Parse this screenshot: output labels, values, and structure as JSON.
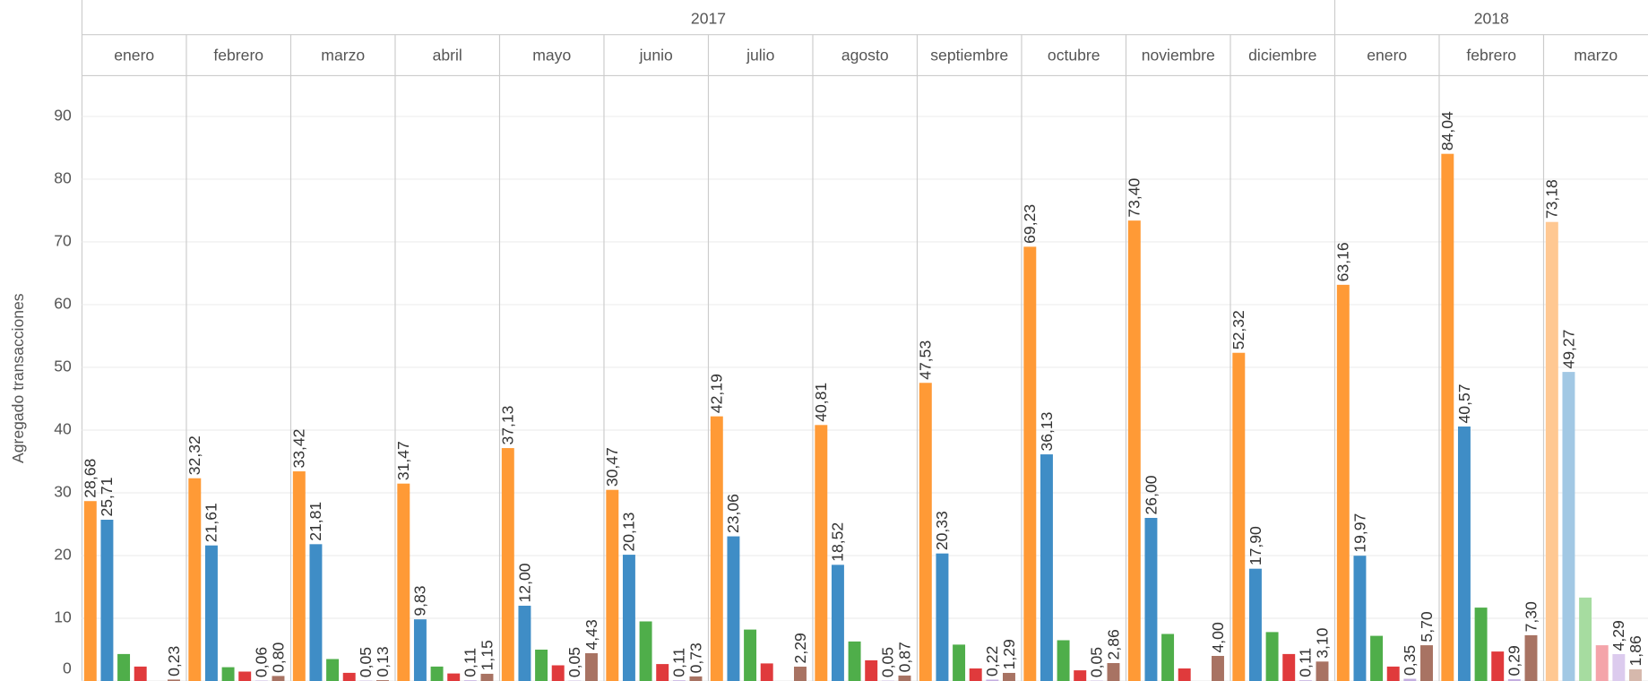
{
  "chart_data": {
    "type": "bar",
    "y_label": "Agregado transacciones",
    "groups": [
      {
        "name": "2017",
        "categories": [
          "enero",
          "febrero",
          "marzo",
          "abril",
          "mayo",
          "junio",
          "julio",
          "agosto",
          "septiembre",
          "octubre",
          "noviembre",
          "diciembre"
        ]
      },
      {
        "name": "2018",
        "categories": [
          "enero",
          "febrero",
          "marzo"
        ]
      }
    ],
    "ylim": [
      0,
      96.5
    ],
    "yticks": [
      0,
      10,
      20,
      30,
      40,
      50,
      60,
      70,
      80,
      90
    ],
    "grid": true,
    "series": [
      {
        "colors": [
          "#ff9a36",
          "#ff9a36",
          "#ff9a36",
          "#ff9a36",
          "#ff9a36",
          "#ff9a36",
          "#ff9a36",
          "#ff9a36",
          "#ff9a36",
          "#ff9a36",
          "#ff9a36",
          "#ff9a36",
          "#ff9a36",
          "#ff9a36",
          "#ffc892"
        ],
        "values": [
          28.68,
          32.32,
          33.42,
          31.47,
          37.13,
          30.47,
          42.19,
          40.81,
          47.53,
          69.23,
          73.4,
          52.32,
          63.16,
          84.04,
          73.18
        ],
        "value_labels": [
          "28,68",
          "32,32",
          "33,42",
          "31,47",
          "37,13",
          "30,47",
          "42,19",
          "40,81",
          "47,53",
          "69,23",
          "73,40",
          "52,32",
          "63,16",
          "84,04",
          "73,18"
        ]
      },
      {
        "colors": [
          "#3f8dc6",
          "#3f8dc6",
          "#3f8dc6",
          "#3f8dc6",
          "#3f8dc6",
          "#3f8dc6",
          "#3f8dc6",
          "#3f8dc6",
          "#3f8dc6",
          "#3f8dc6",
          "#3f8dc6",
          "#3f8dc6",
          "#3f8dc6",
          "#3f8dc6",
          "#a2c8e4"
        ],
        "values": [
          25.71,
          21.61,
          21.81,
          9.83,
          12.0,
          20.13,
          23.06,
          18.52,
          20.33,
          36.13,
          26.0,
          17.9,
          19.97,
          40.57,
          49.27
        ],
        "value_labels": [
          "25,71",
          "21,61",
          "21,81",
          "9,83",
          "12,00",
          "20,13",
          "23,06",
          "18,52",
          "20,33",
          "36,13",
          "26,00",
          "17,90",
          "19,97",
          "40,57",
          "49,27"
        ]
      },
      {
        "colors": [
          "#4fae4a",
          "#4fae4a",
          "#4fae4a",
          "#4fae4a",
          "#4fae4a",
          "#4fae4a",
          "#4fae4a",
          "#4fae4a",
          "#4fae4a",
          "#4fae4a",
          "#4fae4a",
          "#4fae4a",
          "#4fae4a",
          "#4fae4a",
          "#a6dca0"
        ],
        "values": [
          4.3,
          2.2,
          3.5,
          2.3,
          5.0,
          9.5,
          8.2,
          6.3,
          5.8,
          6.5,
          7.5,
          7.8,
          7.2,
          11.7,
          13.3
        ]
      },
      {
        "colors": [
          "#e03a3c",
          "#e03a3c",
          "#e03a3c",
          "#e03a3c",
          "#e03a3c",
          "#e03a3c",
          "#e03a3c",
          "#e03a3c",
          "#e03a3c",
          "#e03a3c",
          "#e03a3c",
          "#e03a3c",
          "#e03a3c",
          "#e03a3c",
          "#f4a4aa"
        ],
        "values": [
          2.3,
          1.5,
          1.3,
          1.2,
          2.5,
          2.7,
          2.8,
          3.3,
          2.0,
          1.7,
          2.0,
          4.3,
          2.3,
          4.7,
          5.7
        ]
      },
      {
        "colors": [
          "#c4aee0",
          "#c4aee0",
          "#c4aee0",
          "#c4aee0",
          "#c4aee0",
          "#c4aee0",
          "#c4aee0",
          "#c4aee0",
          "#c4aee0",
          "#c4aee0",
          "#c4aee0",
          "#c4aee0",
          "#c4aee0",
          "#c4aee0",
          "#dccbee"
        ],
        "values": [
          null,
          0.06,
          0.05,
          0.11,
          0.05,
          0.11,
          null,
          0.05,
          0.22,
          0.05,
          null,
          0.11,
          0.35,
          0.29,
          4.29
        ],
        "value_labels": [
          null,
          "0,06",
          "0,05",
          "0,11",
          "0,05",
          "0,11",
          null,
          "0,05",
          "0,22",
          "0,05",
          null,
          "0,11",
          "0,35",
          "0,29",
          "4,29"
        ]
      },
      {
        "colors": [
          "#a87363",
          "#a87363",
          "#a87363",
          "#a87363",
          "#a87363",
          "#a87363",
          "#a87363",
          "#a87363",
          "#a87363",
          "#a87363",
          "#a87363",
          "#a87363",
          "#a87363",
          "#a87363",
          "#d6b8ac"
        ],
        "values": [
          0.23,
          0.8,
          0.13,
          1.15,
          4.43,
          0.73,
          2.29,
          0.87,
          1.29,
          2.86,
          4.0,
          3.1,
          5.7,
          7.3,
          1.86
        ],
        "value_labels": [
          "0,23",
          "0,80",
          "0,13",
          "1,15",
          "4,43",
          "0,73",
          "2,29",
          "0,87",
          "1,29",
          "2,86",
          "4,00",
          "3,10",
          "5,70",
          "7,30",
          "1,86"
        ]
      }
    ]
  }
}
